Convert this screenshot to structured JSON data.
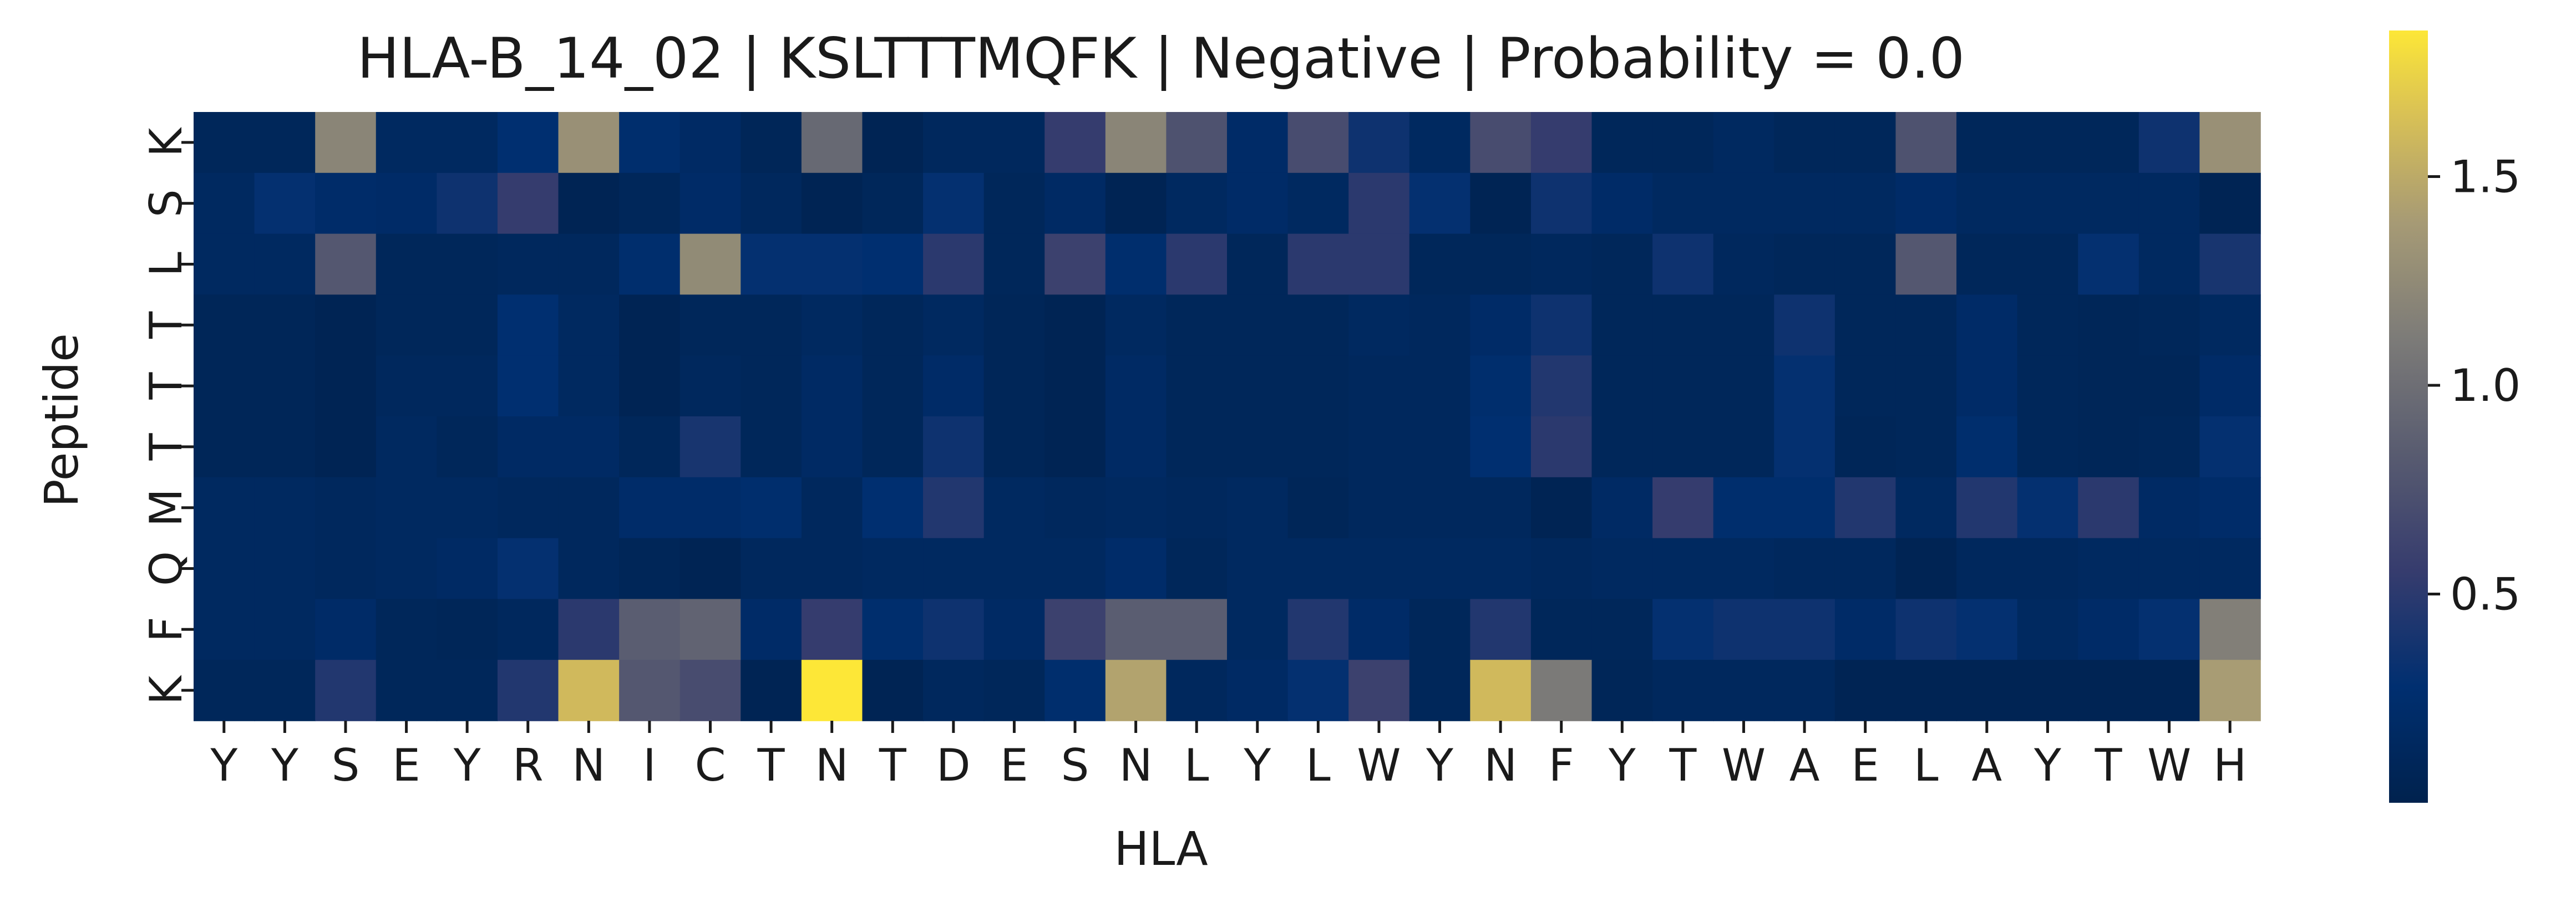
{
  "chart_data": {
    "type": "heatmap",
    "title": "HLA-B_14_02 | KSLTTTMQFK | Negative | Probability = 0.0",
    "xlabel": "HLA",
    "ylabel": "Peptide",
    "x_labels": [
      "Y",
      "Y",
      "S",
      "E",
      "Y",
      "R",
      "N",
      "I",
      "C",
      "T",
      "N",
      "T",
      "D",
      "E",
      "S",
      "N",
      "L",
      "Y",
      "L",
      "W",
      "Y",
      "N",
      "F",
      "Y",
      "T",
      "W",
      "A",
      "E",
      "L",
      "A",
      "Y",
      "T",
      "W",
      "H"
    ],
    "y_labels": [
      "K",
      "S",
      "L",
      "T",
      "T",
      "T",
      "M",
      "Q",
      "F",
      "K"
    ],
    "colormap": "cividis",
    "vmin": 0.0,
    "vmax": 1.85,
    "colorbar_ticks": [
      0.5,
      1.0,
      1.5
    ],
    "colorbar_tick_labels": [
      "0.5",
      "1.0",
      "1.5"
    ],
    "values": [
      [
        0.1,
        0.1,
        1.2,
        0.15,
        0.15,
        0.28,
        1.3,
        0.25,
        0.18,
        0.08,
        0.95,
        0.05,
        0.12,
        0.12,
        0.55,
        1.2,
        0.75,
        0.2,
        0.7,
        0.35,
        0.15,
        0.7,
        0.55,
        0.1,
        0.1,
        0.15,
        0.1,
        0.1,
        0.75,
        0.1,
        0.1,
        0.1,
        0.35,
        1.3
      ],
      [
        0.15,
        0.3,
        0.22,
        0.2,
        0.35,
        0.55,
        0.05,
        0.1,
        0.2,
        0.12,
        0.05,
        0.1,
        0.3,
        0.1,
        0.18,
        0.05,
        0.15,
        0.2,
        0.15,
        0.5,
        0.3,
        0.05,
        0.35,
        0.2,
        0.15,
        0.15,
        0.15,
        0.15,
        0.2,
        0.15,
        0.15,
        0.15,
        0.15,
        0.05
      ],
      [
        0.15,
        0.15,
        0.8,
        0.1,
        0.1,
        0.12,
        0.12,
        0.25,
        1.25,
        0.3,
        0.3,
        0.28,
        0.5,
        0.1,
        0.6,
        0.25,
        0.5,
        0.1,
        0.5,
        0.5,
        0.1,
        0.1,
        0.12,
        0.1,
        0.35,
        0.12,
        0.1,
        0.1,
        0.8,
        0.1,
        0.1,
        0.3,
        0.15,
        0.4
      ],
      [
        0.08,
        0.08,
        0.05,
        0.1,
        0.1,
        0.28,
        0.15,
        0.05,
        0.1,
        0.1,
        0.15,
        0.1,
        0.15,
        0.08,
        0.05,
        0.15,
        0.1,
        0.1,
        0.1,
        0.15,
        0.12,
        0.2,
        0.35,
        0.1,
        0.1,
        0.1,
        0.35,
        0.1,
        0.1,
        0.2,
        0.1,
        0.08,
        0.1,
        0.15
      ],
      [
        0.08,
        0.08,
        0.05,
        0.12,
        0.12,
        0.28,
        0.15,
        0.05,
        0.12,
        0.1,
        0.18,
        0.1,
        0.2,
        0.08,
        0.05,
        0.18,
        0.1,
        0.1,
        0.1,
        0.12,
        0.12,
        0.25,
        0.45,
        0.1,
        0.1,
        0.1,
        0.3,
        0.1,
        0.1,
        0.2,
        0.1,
        0.08,
        0.08,
        0.2
      ],
      [
        0.08,
        0.08,
        0.05,
        0.15,
        0.1,
        0.18,
        0.18,
        0.1,
        0.4,
        0.1,
        0.18,
        0.1,
        0.35,
        0.08,
        0.05,
        0.18,
        0.1,
        0.1,
        0.1,
        0.12,
        0.12,
        0.28,
        0.5,
        0.1,
        0.1,
        0.1,
        0.3,
        0.08,
        0.1,
        0.25,
        0.1,
        0.08,
        0.1,
        0.3
      ],
      [
        0.15,
        0.15,
        0.12,
        0.15,
        0.15,
        0.12,
        0.12,
        0.22,
        0.22,
        0.25,
        0.12,
        0.28,
        0.45,
        0.15,
        0.12,
        0.15,
        0.12,
        0.15,
        0.08,
        0.12,
        0.12,
        0.12,
        0.05,
        0.18,
        0.55,
        0.25,
        0.25,
        0.45,
        0.15,
        0.45,
        0.3,
        0.5,
        0.18,
        0.22
      ],
      [
        0.15,
        0.15,
        0.12,
        0.15,
        0.18,
        0.3,
        0.12,
        0.08,
        0.05,
        0.12,
        0.12,
        0.15,
        0.15,
        0.15,
        0.15,
        0.22,
        0.1,
        0.15,
        0.15,
        0.15,
        0.15,
        0.15,
        0.12,
        0.15,
        0.15,
        0.15,
        0.12,
        0.12,
        0.05,
        0.12,
        0.12,
        0.15,
        0.15,
        0.15
      ],
      [
        0.15,
        0.15,
        0.2,
        0.1,
        0.08,
        0.12,
        0.5,
        0.85,
        0.9,
        0.2,
        0.55,
        0.25,
        0.35,
        0.18,
        0.6,
        0.85,
        0.85,
        0.15,
        0.45,
        0.2,
        0.1,
        0.45,
        0.1,
        0.1,
        0.3,
        0.35,
        0.35,
        0.2,
        0.35,
        0.3,
        0.15,
        0.2,
        0.3,
        1.15
      ],
      [
        0.1,
        0.1,
        0.45,
        0.1,
        0.1,
        0.45,
        1.6,
        0.8,
        0.7,
        0.05,
        1.85,
        0.05,
        0.12,
        0.1,
        0.25,
        1.45,
        0.12,
        0.18,
        0.3,
        0.6,
        0.1,
        1.6,
        1.1,
        0.08,
        0.12,
        0.12,
        0.12,
        0.05,
        0.05,
        0.05,
        0.05,
        0.05,
        0.05,
        1.4
      ]
    ]
  }
}
